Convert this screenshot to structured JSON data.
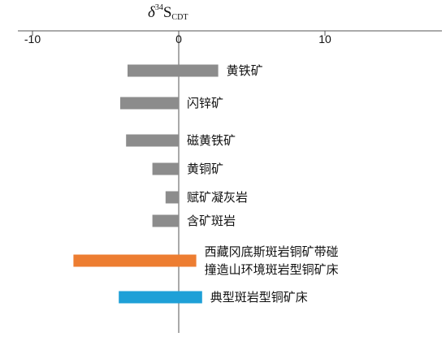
{
  "chart_data": {
    "type": "bar",
    "orientation": "horizontal",
    "axis_title": {
      "symbol": "δ",
      "superscript": "34",
      "element": "S",
      "subscript": "CDT"
    },
    "xlim": [
      -11,
      18
    ],
    "xticks": [
      -10,
      0,
      10
    ],
    "xtick_labels": [
      "-10",
      "0",
      "10"
    ],
    "categories": [
      {
        "label": "黄铁矿",
        "min": -3.5,
        "max": 2.7,
        "color": "#8c8c8c"
      },
      {
        "label": "闪锌矿",
        "min": -4.0,
        "max": 0.0,
        "color": "#8c8c8c"
      },
      {
        "label": "磁黄铁矿",
        "min": -3.6,
        "max": 0.0,
        "color": "#8c8c8c"
      },
      {
        "label": "黄铜矿",
        "min": -1.8,
        "max": 0.0,
        "color": "#8c8c8c"
      },
      {
        "label": "赋矿凝灰岩",
        "min": -0.9,
        "max": 0.0,
        "color": "#8c8c8c"
      },
      {
        "label": "含矿斑岩",
        "min": -1.8,
        "max": 0.0,
        "color": "#8c8c8c"
      },
      {
        "label": [
          "西藏冈底斯斑岩铜矿带碰",
          "撞造山环境斑岩型铜矿床"
        ],
        "min": -7.2,
        "max": 1.2,
        "color": "#ed7d31"
      },
      {
        "label": "典型斑岩型铜矿床",
        "min": -4.1,
        "max": 1.6,
        "color": "#1ea0d7"
      }
    ],
    "grid": false,
    "legend": "none"
  }
}
